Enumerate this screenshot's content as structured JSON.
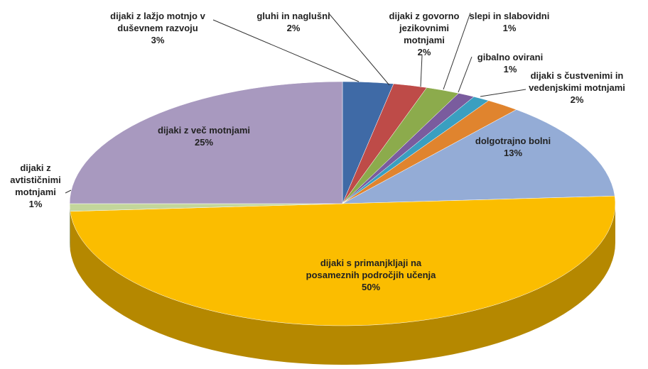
{
  "chart_data": {
    "type": "pie",
    "categories": [
      "dijaki z lažjo motnjo v duševnem razvoju",
      "gluhi in naglušni",
      "dijaki z govorno jezikovnimi motnjami",
      "slepi in slabovidni",
      "gibalno ovirani",
      "dijaki s čustvenimi in vedenjskimi motnjami",
      "dolgotrajno bolni",
      "dijaki s primanjkljaji na posameznih področjih učenja",
      "dijaki z avtističnimi motnjami",
      "dijaki z več motnjami"
    ],
    "values": [
      3,
      2,
      2,
      1,
      1,
      2,
      13,
      50,
      1,
      25
    ],
    "value_labels": [
      "3%",
      "2%",
      "2%",
      "1%",
      "1%",
      "2%",
      "13%",
      "50%",
      "1%",
      "25%"
    ],
    "colors": [
      "#3f6aa6",
      "#be4b48",
      "#8cab4c",
      "#7a5c9e",
      "#3a9fc0",
      "#e0842e",
      "#94acd6",
      "#fbbd00",
      "#c3d69b",
      "#a899bf"
    ]
  }
}
